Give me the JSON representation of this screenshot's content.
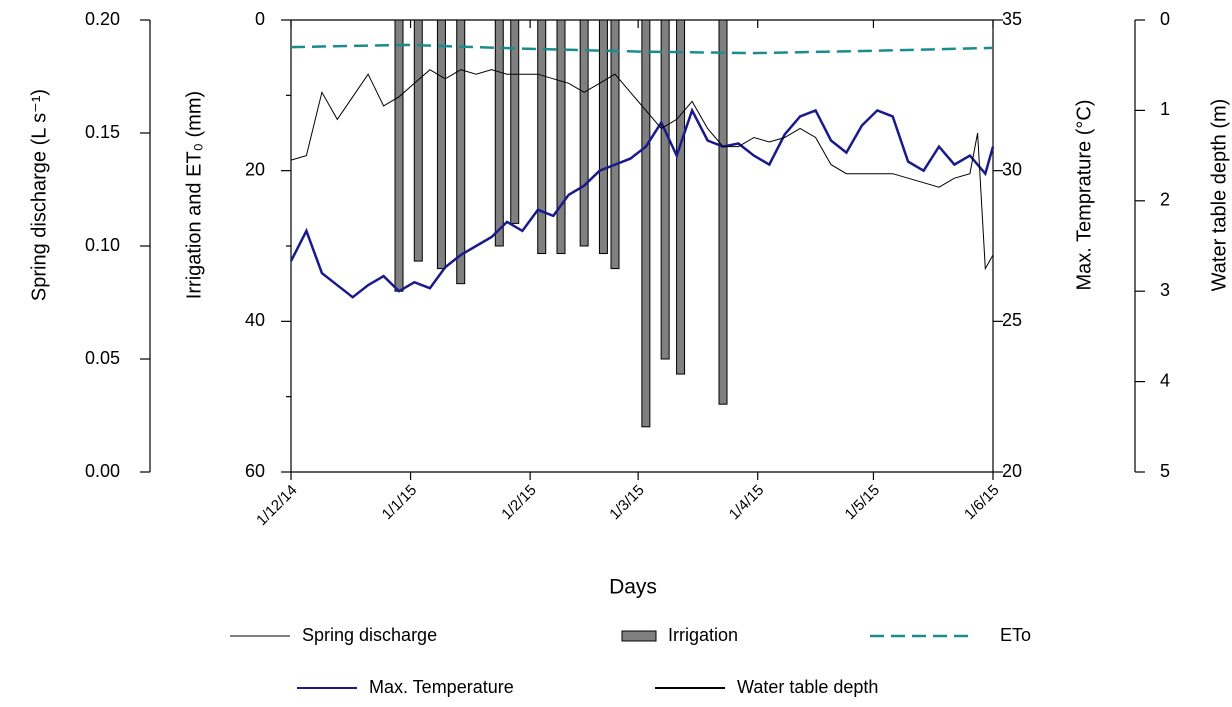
{
  "chart_data": {
    "type": "line",
    "x_label": "Days",
    "xlim": [
      0,
      182
    ],
    "xticks": [
      {
        "value": 0,
        "label": "1/12/14"
      },
      {
        "value": 31,
        "label": "1/1/15"
      },
      {
        "value": 62,
        "label": "1/2/15"
      },
      {
        "value": 90,
        "label": "1/3/15"
      },
      {
        "value": 121,
        "label": "1/4/15"
      },
      {
        "value": 151,
        "label": "1/5/15"
      },
      {
        "value": 182,
        "label": "1/6/15"
      }
    ],
    "axes": {
      "y0": {
        "label": "Spring discharge (L s⁻¹)",
        "lim": [
          0,
          0.2
        ],
        "ticks": [
          {
            "value": 0,
            "label": "0.00"
          },
          {
            "value": 0.05,
            "label": "0.05"
          },
          {
            "value": 0.1,
            "label": "0.10"
          },
          {
            "value": 0.15,
            "label": "0.15"
          },
          {
            "value": 0.2,
            "label": "0.20"
          }
        ]
      },
      "y": {
        "label": "Irrigation and ET₀ (mm)",
        "lim": [
          60,
          0
        ],
        "ticks": [
          0,
          20,
          40,
          60
        ],
        "minor_ticks": [
          10,
          30,
          50
        ]
      },
      "y2": {
        "label": "Max. Temprature (°C)",
        "lim": [
          20,
          35
        ],
        "ticks": [
          20,
          25,
          30,
          35
        ]
      },
      "y3": {
        "label": "Water table depth (m)",
        "lim": [
          5,
          0
        ],
        "ticks": [
          0,
          1,
          2,
          3,
          4,
          5
        ]
      }
    },
    "series": [
      {
        "name": "Spring discharge",
        "type": "line",
        "color": "#808080",
        "axis": "y0"
      },
      {
        "name": "Irrigation",
        "type": "bar",
        "color": "#808080",
        "axis": "y",
        "x": [
          28,
          33,
          39,
          44,
          54,
          58,
          65,
          70,
          76,
          81,
          84,
          92,
          97,
          101,
          112
        ],
        "values": [
          36,
          32,
          33,
          35,
          30,
          27,
          31,
          31,
          30,
          31,
          33,
          54,
          45,
          47,
          51
        ]
      },
      {
        "name": "ETo",
        "type": "line",
        "dash": true,
        "color": "#1a8c8c",
        "axis": "y",
        "x": [
          0,
          30,
          60,
          90,
          120,
          150,
          182
        ],
        "values": [
          3.6,
          3.3,
          3.8,
          4.2,
          4.4,
          4.1,
          3.7
        ]
      },
      {
        "name": "Max. Temperature",
        "type": "line",
        "color": "#1a1a8c",
        "axis": "y2",
        "x": [
          0,
          4,
          8,
          12,
          16,
          20,
          24,
          28,
          32,
          36,
          40,
          44,
          48,
          52,
          56,
          60,
          64,
          68,
          72,
          76,
          80,
          84,
          88,
          92,
          96,
          100,
          104,
          108,
          112,
          116,
          120,
          124,
          128,
          132,
          136,
          140,
          144,
          148,
          152,
          156,
          160,
          164,
          168,
          172,
          176,
          180,
          182
        ],
        "values": [
          27.0,
          28.0,
          26.6,
          26.2,
          25.8,
          26.2,
          26.5,
          26.0,
          26.3,
          26.1,
          26.8,
          27.2,
          27.5,
          27.8,
          28.3,
          28.0,
          28.7,
          28.5,
          29.2,
          29.5,
          30.0,
          30.2,
          30.4,
          30.8,
          31.6,
          30.5,
          32.0,
          31.0,
          30.8,
          30.9,
          30.5,
          30.2,
          31.2,
          31.8,
          32.0,
          31.0,
          30.6,
          31.5,
          32.0,
          31.8,
          30.3,
          30.0,
          30.8,
          30.2,
          30.5,
          29.9,
          30.8
        ]
      },
      {
        "name": "Water table depth",
        "type": "line",
        "color": "#000000",
        "axis": "y3",
        "x": [
          0,
          4,
          8,
          12,
          16,
          20,
          24,
          28,
          32,
          36,
          40,
          44,
          48,
          52,
          56,
          60,
          64,
          68,
          72,
          76,
          80,
          84,
          88,
          92,
          96,
          100,
          104,
          108,
          112,
          116,
          120,
          124,
          128,
          132,
          136,
          140,
          144,
          148,
          152,
          156,
          160,
          164,
          168,
          172,
          176,
          178,
          180,
          182
        ],
        "values": [
          1.55,
          1.5,
          0.8,
          1.1,
          0.85,
          0.6,
          0.95,
          0.85,
          0.7,
          0.55,
          0.65,
          0.55,
          0.6,
          0.55,
          0.6,
          0.6,
          0.6,
          0.65,
          0.7,
          0.8,
          0.7,
          0.6,
          0.8,
          1.0,
          1.2,
          1.1,
          0.9,
          1.2,
          1.4,
          1.4,
          1.3,
          1.35,
          1.3,
          1.2,
          1.3,
          1.6,
          1.7,
          1.7,
          1.7,
          1.7,
          1.75,
          1.8,
          1.85,
          1.75,
          1.7,
          1.25,
          2.75,
          2.6
        ]
      }
    ]
  }
}
